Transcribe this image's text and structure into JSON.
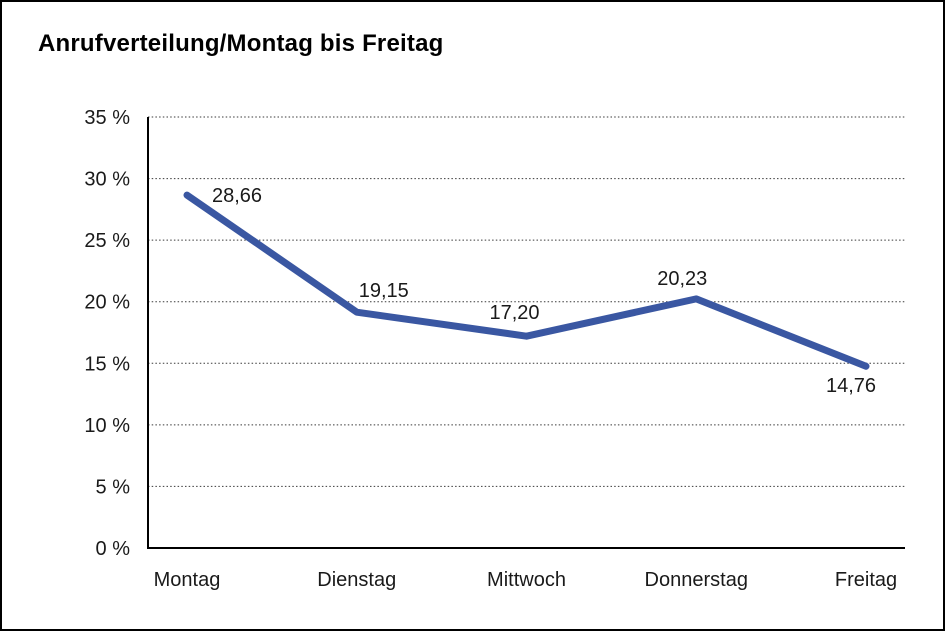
{
  "chart_data": {
    "type": "line",
    "title": "Anrufverteilung/Montag bis Freitag",
    "categories": [
      "Montag",
      "Dienstag",
      "Mittwoch",
      "Donnerstag",
      "Freitag"
    ],
    "series": [
      {
        "name": "Anrufverteilung",
        "values": [
          28.66,
          19.15,
          17.2,
          20.23,
          14.76
        ]
      }
    ],
    "values": [
      28.66,
      19.15,
      17.2,
      20.23,
      14.76
    ],
    "point_labels": [
      "28,66",
      "19,15",
      "17,20",
      "20,23",
      "14,76"
    ],
    "xlabel": "",
    "ylabel": "",
    "ylim": [
      0,
      35
    ],
    "ytick_step": 5,
    "ytick_labels": [
      "0 %",
      "5 %",
      "10 %",
      "15 %",
      "20 %",
      "25 %",
      "30 %",
      "35 %"
    ],
    "grid": "horizontal-dotted",
    "legend": "none",
    "line_color": "#3A57A2",
    "grid_color": "#3a3a3a",
    "axis_color": "#000000",
    "text_color": "#1a1a1a",
    "background_color": "#ffffff"
  }
}
